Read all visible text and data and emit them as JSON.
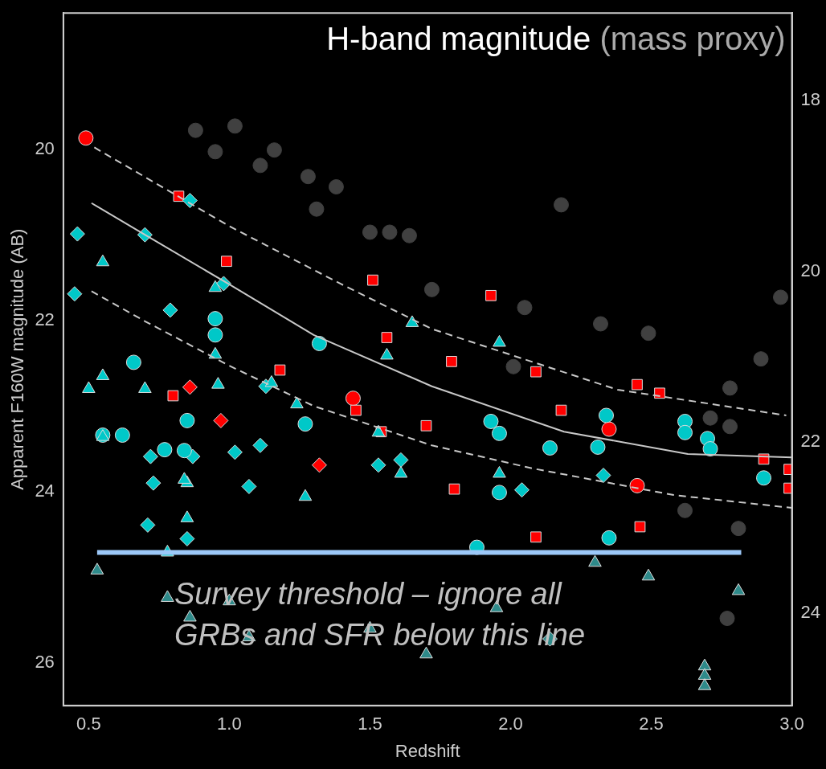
{
  "chart_data": {
    "type": "scatter",
    "title": "H-band magnitude",
    "subtitle": "(mass proxy)",
    "xlabel": "Redshift",
    "ylabel": "Apparent F160W magnitude (AB)",
    "xlim": [
      0.41,
      3.0
    ],
    "xticks": [
      0.5,
      {
        "value": 1,
        "label": "1.0"
      },
      1.5,
      {
        "value": 2,
        "label": "2.0"
      },
      2.5,
      {
        "value": 3,
        "label": "3.0"
      }
    ],
    "ylim": [
      26.5,
      18.41
    ],
    "yticks": [
      20,
      22,
      24,
      26
    ],
    "y2lim": [
      25.08,
      16.98
    ],
    "y2ticks": [
      18,
      20,
      22,
      24
    ],
    "grid": false,
    "legend": false,
    "annotations": [
      "Survey threshold – ignore all GRBs and SFR below this line"
    ],
    "series": [
      {
        "marker": "circle",
        "color": "#404040",
        "x": [
          2.18,
          1.72,
          2.96,
          2.89,
          2.78,
          2.05,
          2.32,
          2.49,
          2.01,
          1.02,
          1.16,
          1.38,
          1.5,
          1.57,
          1.64,
          1.31,
          0.88,
          1.28,
          1.11,
          0.95,
          2.62,
          2.81,
          2.78,
          2.71,
          2.77
        ],
        "values": [
          20.65,
          21.64,
          21.73,
          22.45,
          22.79,
          21.85,
          22.04,
          22.15,
          22.54,
          19.73,
          20.01,
          20.44,
          20.97,
          20.97,
          21.01,
          20.7,
          19.78,
          20.32,
          20.19,
          20.03,
          24.22,
          24.43,
          23.24,
          23.14,
          25.48
        ]
      },
      {
        "type": "line",
        "line_style": "solid",
        "color": "#c8c8c8",
        "x": [
          0.51,
          0.7,
          1.0,
          1.3,
          1.72,
          2.19,
          2.63,
          3.0
        ],
        "values": [
          20.63,
          21.0,
          21.58,
          22.17,
          22.77,
          23.3,
          23.56,
          23.6
        ]
      },
      {
        "type": "line",
        "line_style": "dashed",
        "color": "#c8c8c8",
        "x": [
          0.52,
          1.0,
          1.4,
          1.72,
          2.38,
          2.98
        ],
        "values": [
          19.98,
          20.9,
          21.58,
          22.1,
          22.81,
          23.11
        ]
      },
      {
        "type": "line",
        "line_style": "dashed",
        "color": "#c8c8c8",
        "x": [
          0.51,
          0.7,
          1.0,
          1.3,
          1.72,
          2.08,
          2.58,
          3.0
        ],
        "values": [
          21.66,
          22.01,
          22.53,
          23.0,
          23.46,
          23.73,
          24.04,
          24.19
        ]
      },
      {
        "type": "line",
        "line_style": "solid",
        "color": "#9cc8f8",
        "x": [
          0.53,
          2.82
        ],
        "values": [
          24.71,
          24.71
        ]
      },
      {
        "marker": "triangle",
        "color": "#2e8a8a",
        "x": [
          0.53,
          2.3,
          2.81,
          1.7,
          2.69,
          2.69,
          2.69,
          0.78,
          0.86,
          1.0,
          1.07,
          1.5,
          2.49,
          1.95
        ],
        "values": [
          24.92,
          24.83,
          25.16,
          25.9,
          26.04,
          26.15,
          26.27,
          25.24,
          25.47,
          25.28,
          25.7,
          25.6,
          24.99,
          25.36
        ]
      },
      {
        "marker": "diamond",
        "color": "#2e8a8a",
        "x": [
          2.14
        ],
        "values": [
          25.72
        ]
      },
      {
        "marker": "triangle",
        "color": "#00c8c8",
        "x": [
          0.55,
          0.95,
          0.95,
          1.65,
          1.56,
          1.96,
          0.55,
          0.5,
          0.7,
          0.96,
          1.24,
          1.15,
          1.53,
          0.55,
          0.85,
          0.85,
          1.27,
          1.61,
          1.96,
          0.78,
          0.84
        ],
        "values": [
          21.32,
          21.62,
          22.4,
          22.03,
          22.41,
          22.26,
          22.65,
          22.8,
          22.8,
          22.75,
          22.98,
          22.73,
          23.31,
          23.36,
          23.9,
          24.31,
          24.06,
          23.79,
          23.79,
          24.71,
          23.86
        ]
      },
      {
        "marker": "circle",
        "color": "#00c8c8",
        "x": [
          0.66,
          0.95,
          0.95,
          1.32,
          0.55,
          0.62,
          0.77,
          0.85,
          0.84,
          1.27,
          1.93,
          1.96,
          2.14,
          2.34,
          2.31,
          1.96,
          2.35,
          2.62,
          2.62,
          2.7,
          2.71,
          2.9,
          1.88
        ],
        "values": [
          22.49,
          21.98,
          22.17,
          22.27,
          23.34,
          23.34,
          23.51,
          23.17,
          23.52,
          23.21,
          23.18,
          23.32,
          23.49,
          23.11,
          23.48,
          24.01,
          24.54,
          23.18,
          23.31,
          23.38,
          23.5,
          23.84,
          24.65
        ]
      },
      {
        "marker": "diamond",
        "color": "#00c8c8",
        "x": [
          0.46,
          0.45,
          0.7,
          0.86,
          0.98,
          0.79,
          1.13,
          0.72,
          0.73,
          0.71,
          0.87,
          0.85,
          1.02,
          1.11,
          1.07,
          1.53,
          1.61,
          2.04,
          2.33
        ],
        "values": [
          20.99,
          21.69,
          21.0,
          20.6,
          21.57,
          21.88,
          22.77,
          23.59,
          23.9,
          24.39,
          23.59,
          24.55,
          23.54,
          23.46,
          23.94,
          23.69,
          23.63,
          23.98,
          23.81
        ]
      },
      {
        "marker": "square",
        "color": "#ff0000",
        "x": [
          0.82,
          0.99,
          1.18,
          1.45,
          1.7,
          1.79,
          2.09,
          2.18,
          2.45,
          1.8,
          2.09,
          2.46,
          2.9,
          2.99,
          2.99,
          0.8,
          1.51,
          1.56,
          1.93,
          2.53,
          1.54
        ],
        "values": [
          20.55,
          21.31,
          22.58,
          23.05,
          23.23,
          22.48,
          22.6,
          23.05,
          22.75,
          23.97,
          24.53,
          24.41,
          23.62,
          23.74,
          23.96,
          22.88,
          21.53,
          22.2,
          21.71,
          22.85,
          23.3
        ]
      },
      {
        "marker": "circle",
        "color": "#ff0000",
        "x": [
          0.49,
          1.44,
          2.35,
          2.45
        ],
        "values": [
          19.87,
          22.91,
          23.27,
          23.93
        ]
      },
      {
        "marker": "diamond",
        "color": "#ff0000",
        "x": [
          0.86,
          0.97,
          1.32
        ],
        "values": [
          22.78,
          23.17,
          23.69
        ]
      }
    ]
  }
}
